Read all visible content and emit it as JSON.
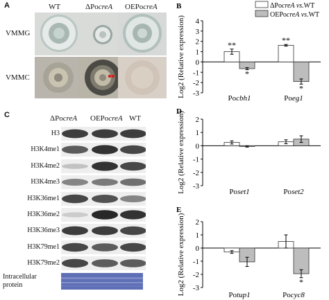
{
  "panel_a": {
    "label": "A",
    "columns": [
      {
        "pre": "WT",
        "it": ""
      },
      {
        "pre": "ΔPo",
        "it": "creA"
      },
      {
        "pre": "OEPo",
        "it": "creA"
      }
    ],
    "rows": [
      "VMMG",
      "VMMC"
    ]
  },
  "panel_c": {
    "label": "C",
    "columns": [
      {
        "pre": "ΔPo",
        "it": "creA"
      },
      {
        "pre": "OEPo",
        "it": "creA"
      },
      {
        "pre": "WT",
        "it": ""
      }
    ],
    "rows": [
      "H3",
      "H3K4me1",
      "H3K4me2",
      "H3K4me3",
      "H3K36me1",
      "H3K36me2",
      "H3K36me3",
      "H3K79me1",
      "H3K79me2"
    ],
    "band_intensity": [
      [
        0.85,
        0.85,
        0.85
      ],
      [
        0.7,
        0.9,
        0.8
      ],
      [
        0.2,
        0.9,
        0.8
      ],
      [
        0.5,
        0.55,
        0.6
      ],
      [
        0.8,
        0.75,
        0.5
      ],
      [
        0.15,
        0.95,
        0.9
      ],
      [
        0.85,
        0.85,
        0.8
      ],
      [
        0.8,
        0.7,
        0.8
      ],
      [
        0.8,
        0.7,
        0.7
      ]
    ],
    "loading_label_1": "Intracellular",
    "loading_label_2": "protein"
  },
  "chart_data": [
    {
      "panel": "B",
      "type": "bar",
      "ylabel": "Log2 (Relative expression)",
      "ylim": [
        -3,
        4
      ],
      "yticks": [
        -3,
        -2,
        -1,
        0,
        1,
        2,
        3,
        4
      ],
      "categories": [
        {
          "pre": "Po",
          "it": "cbh1"
        },
        {
          "pre": "Po",
          "it": "eg1"
        }
      ],
      "legend": [
        {
          "pre": "ΔPo",
          "it": "creA",
          "post_it": " vs.",
          "post": "WT",
          "color": "#ffffff"
        },
        {
          "pre": "OEPo",
          "it": "creA",
          "post_it": " vs.",
          "post": "WT",
          "color": "#bdbdbd"
        }
      ],
      "series": [
        {
          "values": [
            1.0,
            1.62
          ],
          "errors": [
            0.25,
            0.08
          ],
          "color": "#ffffff",
          "marks": [
            "**",
            "**"
          ]
        },
        {
          "values": [
            -0.65,
            -1.9
          ],
          "errors": [
            0.1,
            0.25
          ],
          "color": "#bdbdbd",
          "marks": [
            "*",
            "*"
          ]
        }
      ]
    },
    {
      "panel": "D",
      "type": "bar",
      "ylabel": "Log2 (Relative expression)",
      "ylim": [
        -3,
        2
      ],
      "yticks": [
        -3,
        -2,
        -1,
        0,
        1,
        2
      ],
      "categories": [
        {
          "pre": "Po",
          "it": "set1"
        },
        {
          "pre": "Po",
          "it": "set2"
        }
      ],
      "series": [
        {
          "values": [
            0.25,
            0.3
          ],
          "errors": [
            0.12,
            0.15
          ],
          "color": "#ffffff",
          "marks": [
            "",
            ""
          ]
        },
        {
          "values": [
            -0.05,
            0.5
          ],
          "errors": [
            0.05,
            0.25
          ],
          "color": "#bdbdbd",
          "marks": [
            "",
            ""
          ]
        }
      ]
    },
    {
      "panel": "E",
      "type": "bar",
      "ylabel": "Log2 (Relative expression)",
      "ylim": [
        -3,
        2
      ],
      "yticks": [
        -3,
        -2,
        -1,
        0,
        1,
        2
      ],
      "categories": [
        {
          "pre": "Po",
          "it": "tup1"
        },
        {
          "pre": "Po",
          "it": "cyc8"
        }
      ],
      "series": [
        {
          "values": [
            -0.3,
            0.5
          ],
          "errors": [
            0.1,
            0.5
          ],
          "color": "#ffffff",
          "marks": [
            "",
            ""
          ]
        },
        {
          "values": [
            -1.05,
            -1.95
          ],
          "errors": [
            0.35,
            0.3
          ],
          "color": "#bdbdbd",
          "marks": [
            "",
            "*"
          ]
        }
      ]
    }
  ]
}
